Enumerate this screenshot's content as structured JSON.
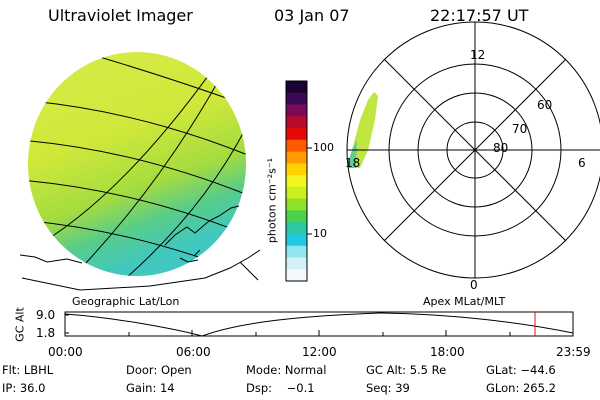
{
  "header": {
    "instrument": "Ultraviolet Imager",
    "date": "03 Jan 07",
    "time": "22:17:57 UT"
  },
  "colorbar": {
    "unit_label": "photon cm⁻²s⁻¹",
    "ticks": [
      "100",
      "10"
    ],
    "scale": "log",
    "colors": [
      "#1a0033",
      "#3a0a55",
      "#7a0a5a",
      "#b80a2a",
      "#e40a0a",
      "#ff5a00",
      "#ff9a00",
      "#ffd200",
      "#f4f420",
      "#c8f020",
      "#8ee02a",
      "#4ad24a",
      "#2ec8a0",
      "#20c8e0",
      "#8ee6f0",
      "#d2f0f6",
      "#f4f8fa"
    ]
  },
  "geo_panel": {
    "label": "Geographic Lat/Lon"
  },
  "polar_panel": {
    "label": "Apex MLat/MLT",
    "lat_labels": [
      "60",
      "70",
      "80"
    ],
    "mlt_labels": [
      "12",
      "18",
      "6",
      "0"
    ]
  },
  "altitude_plot": {
    "ylabel": "GC Alt",
    "yticks": [
      "9.0",
      "1.8"
    ],
    "xticks": [
      "00:00",
      "06:00",
      "12:00",
      "18:00",
      "23:59"
    ],
    "marker_color": "#e01010"
  },
  "footer": {
    "row1": {
      "flt": "Flt: LBHL",
      "door": "Door: Open",
      "mode": "Mode: Normal",
      "gcalt": "GC Alt: 5.5 Re",
      "glat": "GLat: −44.6"
    },
    "row2": {
      "ip": "IP: 36.0",
      "gain": "Gain: 14",
      "dsp": "Dsp:    −0.1",
      "seq": "Seq: 39",
      "glon": "GLon: 265.2"
    }
  }
}
